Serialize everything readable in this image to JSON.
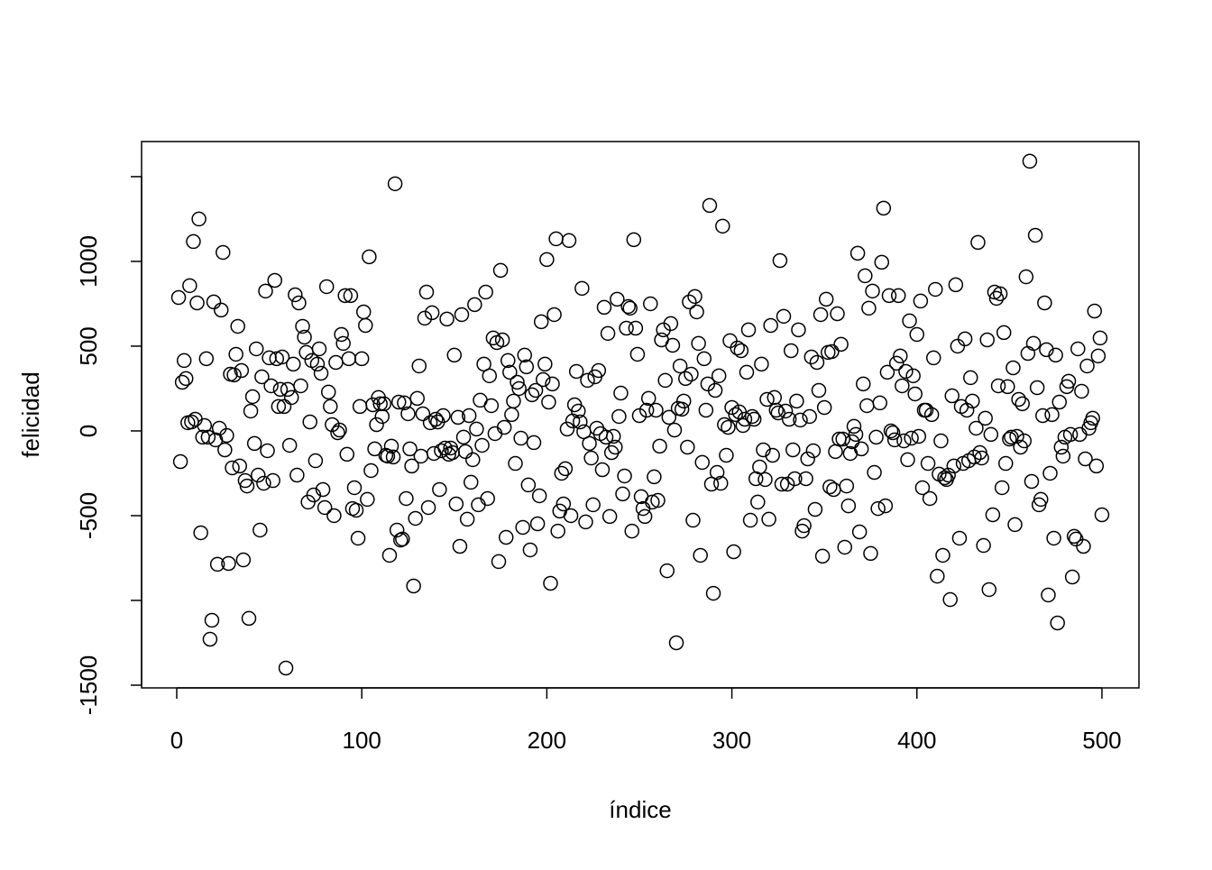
{
  "chart_data": {
    "type": "scatter",
    "xlabel": "índice",
    "ylabel": "felicidad",
    "xlim": [
      -19,
      520
    ],
    "ylim": [
      -1516,
      1707
    ],
    "xticks": [
      0,
      100,
      200,
      300,
      400,
      500
    ],
    "yticks": [
      -1500,
      {
        "value": -1000,
        "label": null
      },
      -500,
      0,
      500,
      1000,
      {
        "value": 1500,
        "label": null
      }
    ],
    "color": "#000000",
    "x": [
      1,
      2,
      3,
      4,
      5,
      6,
      7,
      8,
      9,
      10,
      11,
      12,
      13,
      14,
      15,
      16,
      17,
      18,
      19,
      20,
      21,
      22,
      23,
      24,
      25,
      26,
      27,
      28,
      29,
      30,
      31,
      32,
      33,
      34,
      35,
      36,
      37,
      38,
      39,
      40,
      41,
      42,
      43,
      44,
      45,
      46,
      47,
      48,
      49,
      50,
      51,
      52,
      53,
      54,
      55,
      56,
      57,
      58,
      59,
      60,
      61,
      62,
      63,
      64,
      65,
      66,
      67,
      68,
      69,
      70,
      71,
      72,
      73,
      74,
      75,
      76,
      77,
      78,
      79,
      80,
      81,
      82,
      83,
      84,
      85,
      86,
      87,
      88,
      89,
      90,
      91,
      92,
      93,
      94,
      95,
      96,
      97,
      98,
      99,
      100,
      101,
      102,
      103,
      104,
      105,
      106,
      107,
      108,
      109,
      110,
      111,
      112,
      113,
      114,
      115,
      116,
      117,
      118,
      119,
      120,
      121,
      122,
      123,
      124,
      125,
      126,
      127,
      128,
      129,
      130,
      131,
      132,
      133,
      134,
      135,
      136,
      137,
      138,
      139,
      140,
      141,
      142,
      143,
      144,
      145,
      146,
      147,
      148,
      149,
      150,
      151,
      152,
      153,
      154,
      155,
      156,
      157,
      158,
      159,
      160,
      161,
      162,
      163,
      164,
      165,
      166,
      167,
      168,
      169,
      170,
      171,
      172,
      173,
      174,
      175,
      176,
      177,
      178,
      179,
      180,
      181,
      182,
      183,
      184,
      185,
      186,
      187,
      188,
      189,
      190,
      191,
      192,
      193,
      194,
      195,
      196,
      197,
      198,
      199,
      200,
      201,
      202,
      203,
      204,
      205,
      206,
      207,
      208,
      209,
      210,
      211,
      212,
      213,
      214,
      215,
      216,
      217,
      218,
      219,
      220,
      221,
      222,
      223,
      224,
      225,
      226,
      227,
      228,
      229,
      230,
      231,
      232,
      233,
      234,
      235,
      236,
      237,
      238,
      239,
      240,
      241,
      242,
      243,
      244,
      245,
      246,
      247,
      248,
      249,
      250,
      251,
      252,
      253,
      254,
      255,
      256,
      257,
      258,
      259,
      260,
      261,
      262,
      263,
      264,
      265,
      266,
      267,
      268,
      269,
      270,
      271,
      272,
      273,
      274,
      275,
      276,
      277,
      278,
      279,
      280,
      281,
      282,
      283,
      284,
      285,
      286,
      287,
      288,
      289,
      290,
      291,
      292,
      293,
      294,
      295,
      296,
      297,
      298,
      299,
      300,
      301,
      302,
      303,
      304,
      305,
      306,
      307,
      308,
      309,
      310,
      311,
      312,
      313,
      314,
      315,
      316,
      317,
      318,
      319,
      320,
      321,
      322,
      323,
      324,
      325,
      326,
      327,
      328,
      329,
      330,
      331,
      332,
      333,
      334,
      335,
      336,
      337,
      338,
      339,
      340,
      341,
      342,
      343,
      344,
      345,
      346,
      347,
      348,
      349,
      350,
      351,
      352,
      353,
      354,
      355,
      356,
      357,
      358,
      359,
      360,
      361,
      362,
      363,
      364,
      365,
      366,
      367,
      368,
      369,
      370,
      371,
      372,
      373,
      374,
      375,
      376,
      377,
      378,
      379,
      380,
      381,
      382,
      383,
      384,
      385,
      386,
      387,
      388,
      389,
      390,
      391,
      392,
      393,
      394,
      395,
      396,
      397,
      398,
      399,
      400,
      401,
      402,
      403,
      404,
      405,
      406,
      407,
      408,
      409,
      410,
      411,
      412,
      413,
      414,
      415,
      416,
      417,
      418,
      419,
      420,
      421,
      422,
      423,
      424,
      425,
      426,
      427,
      428,
      429,
      430,
      431,
      432,
      433,
      434,
      435,
      436,
      437,
      438,
      439,
      440,
      441,
      442,
      443,
      444,
      445,
      446,
      447,
      448,
      449,
      450,
      451,
      452,
      453,
      454,
      455,
      456,
      457,
      458,
      459,
      460,
      461,
      462,
      463,
      464,
      465,
      466,
      467,
      468,
      469,
      470,
      471,
      472,
      473,
      474,
      475,
      476,
      477,
      478,
      479,
      480,
      481,
      482,
      483,
      484,
      485,
      486,
      487,
      488,
      489,
      490,
      491,
      492,
      493,
      494,
      495,
      496,
      497,
      498,
      499,
      500
    ],
    "values": [
      787,
      -181,
      287,
      415,
      309,
      48,
      857,
      53,
      1117,
      69,
      755,
      1250,
      -601,
      -37,
      32,
      426,
      -37,
      -1229,
      -1117,
      761,
      -53,
      -787,
      16,
      713,
      1053,
      -112,
      -27,
      -782,
      335,
      -218,
      330,
      452,
      617,
      -207,
      356,
      -761,
      -293,
      -325,
      -1106,
      117,
      202,
      -74,
      484,
      -261,
      -585,
      319,
      -309,
      825,
      -117,
      431,
      266,
      -293,
      888,
      426,
      144,
      245,
      436,
      144,
      -1399,
      245,
      -85,
      197,
      394,
      803,
      -261,
      755,
      266,
      617,
      553,
      463,
      -420,
      53,
      415,
      -378,
      -176,
      394,
      484,
      340,
      -346,
      -452,
      851,
      229,
      144,
      37,
      -500,
      404,
      -11,
      5,
      569,
      516,
      798,
      -138,
      426,
      798,
      -458,
      -335,
      -468,
      -633,
      144,
      426,
      702,
      622,
      -404,
      1027,
      -234,
      154,
      -106,
      37,
      197,
      160,
      85,
      160,
      -144,
      -149,
      -734,
      -90,
      -154,
      1458,
      -585,
      170,
      -644,
      -638,
      165,
      -399,
      101,
      -106,
      -207,
      -915,
      -516,
      192,
      383,
      -149,
      101,
      665,
      819,
      -452,
      48,
      697,
      -133,
      69,
      53,
      -346,
      -117,
      90,
      -101,
      660,
      -138,
      -101,
      -128,
      447,
      -431,
      80,
      -681,
      686,
      -37,
      -122,
      -521,
      90,
      -303,
      -170,
      745,
      11,
      -436,
      181,
      -85,
      394,
      819,
      -399,
      325,
      149,
      548,
      -16,
      521,
      -771,
      947,
      537,
      21,
      -628,
      415,
      346,
      96,
      176,
      -192,
      287,
      250,
      -43,
      -569,
      447,
      378,
      -319,
      -702,
      213,
      -69,
      239,
      -548,
      -383,
      644,
      303,
      394,
      1011,
      170,
      -899,
      277,
      686,
      1133,
      -591,
      -473,
      -250,
      -431,
      -223,
      11,
      1123,
      -500,
      59,
      154,
      351,
      117,
      53,
      841,
      -5,
      -537,
      298,
      -74,
      -160,
      -436,
      319,
      16,
      356,
      -16,
      -229,
      729,
      -37,
      575,
      -505,
      -128,
      -32,
      -96,
      777,
      85,
      223,
      -372,
      -266,
      606,
      734,
      724,
      -591,
      1128,
      606,
      452,
      90,
      -388,
      -458,
      -505,
      122,
      192,
      750,
      -420,
      -271,
      122,
      -410,
      -90,
      537,
      596,
      298,
      -825,
      80,
      633,
      505,
      5,
      -1250,
      133,
      383,
      128,
      176,
      309,
      -96,
      761,
      335,
      -527,
      793,
      702,
      516,
      -734,
      -186,
      426,
      122,
      277,
      1330,
      -314,
      -958,
      239,
      -245,
      325,
      -309,
      1208,
      37,
      -144,
      21,
      532,
      138,
      -713,
      96,
      489,
      112,
      473,
      32,
      69,
      346,
      596,
      -527,
      85,
      69,
      -282,
      -420,
      -213,
      394,
      -112,
      -287,
      186,
      -521,
      622,
      -144,
      197,
      122,
      106,
      1005,
      -314,
      676,
      117,
      -314,
      69,
      473,
      -112,
      -282,
      176,
      596,
      64,
      -591,
      -559,
      -282,
      -165,
      85,
      436,
      -117,
      -463,
      404,
      239,
      686,
      -739,
      138,
      777,
      463,
      -330,
      468,
      -346,
      -122,
      691,
      -48,
      511,
      -48,
      -686,
      -325,
      -442,
      -133,
      -64,
      27,
      -21,
      1048,
      -596,
      -106,
      277,
      915,
      149,
      724,
      -723,
      825,
      -245,
      -37,
      -458,
      165,
      995,
      1314,
      -442,
      346,
      798,
      0,
      -11,
      -53,
      399,
      798,
      442,
      266,
      -59,
      351,
      -170,
      649,
      -43,
      325,
      218,
      569,
      -32,
      766,
      -335,
      122,
      122,
      -192,
      -399,
      96,
      431,
      835,
      -857,
      -255,
      -59,
      -734,
      -277,
      -287,
      -261,
      -995,
      207,
      -207,
      862,
      500,
      -633,
      144,
      -192,
      543,
      122,
      -176,
      314,
      176,
      -154,
      16,
      1112,
      -128,
      -160,
      -676,
      75,
      537,
      -936,
      -21,
      -495,
      819,
      782,
      266,
      809,
      -335,
      580,
      -192,
      261,
      -48,
      -37,
      372,
      -553,
      -32,
      186,
      -96,
      160,
      -59,
      909,
      457,
      1591,
      -298,
      516,
      1154,
      255,
      -436,
      -404,
      90,
      755,
      479,
      -968,
      -250,
      96,
      -633,
      447,
      -1133,
      170,
      -96,
      -149,
      -37,
      261,
      293,
      -21,
      -862,
      -622,
      -638,
      484,
      -21,
      234,
      -681,
      -165,
      383,
      16,
      48,
      75,
      707,
      -207,
      442,
      548,
      -495
    ]
  }
}
